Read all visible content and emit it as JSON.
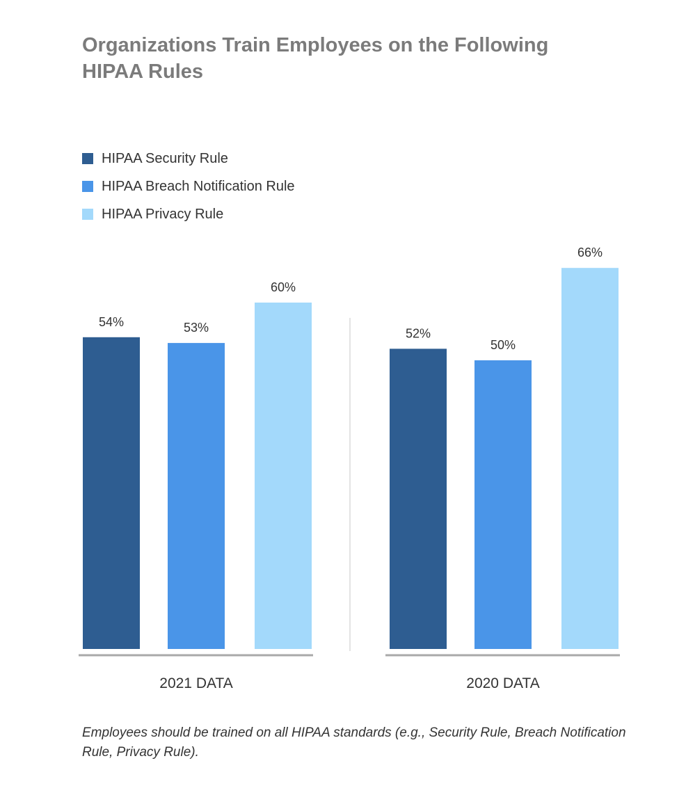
{
  "chart_data": {
    "type": "bar",
    "title": "Organizations Train Employees on the Following HIPAA Rules",
    "categories": [
      "2021 DATA",
      "2020 DATA"
    ],
    "series": [
      {
        "name": "HIPAA Security Rule",
        "color": "#2e5d91",
        "values": [
          54,
          52
        ]
      },
      {
        "name": "HIPAA Breach Notification Rule",
        "color": "#4a95e8",
        "values": [
          53,
          50
        ]
      },
      {
        "name": "HIPAA Privacy Rule",
        "color": "#a3d9fb",
        "values": [
          60,
          66
        ]
      }
    ],
    "value_suffix": "%",
    "ylim": [
      0,
      100
    ],
    "grid": false,
    "legend": "top-left",
    "note": "Employees should be trained on all HIPAA standards (e.g., Security Rule, Breach Notification Rule, Privacy Rule)."
  }
}
